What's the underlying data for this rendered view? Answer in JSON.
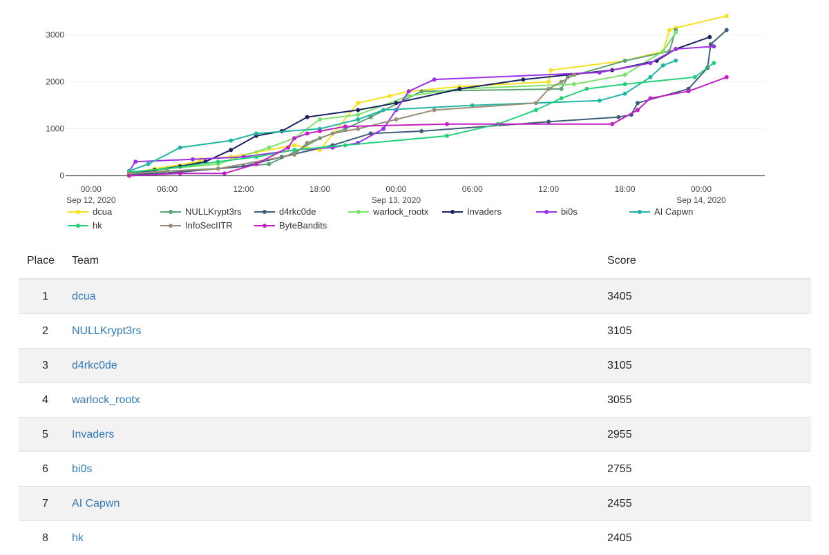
{
  "chart_data": {
    "type": "line",
    "x_axis": {
      "ticks": [
        {
          "x": "2020-09-12 00:00",
          "label": "00:00",
          "sub": "Sep 12, 2020"
        },
        {
          "x": "2020-09-12 06:00",
          "label": "06:00",
          "sub": ""
        },
        {
          "x": "2020-09-12 12:00",
          "label": "12:00",
          "sub": ""
        },
        {
          "x": "2020-09-12 18:00",
          "label": "18:00",
          "sub": ""
        },
        {
          "x": "2020-09-13 00:00",
          "label": "00:00",
          "sub": "Sep 13, 2020"
        },
        {
          "x": "2020-09-13 06:00",
          "label": "06:00",
          "sub": ""
        },
        {
          "x": "2020-09-13 12:00",
          "label": "12:00",
          "sub": ""
        },
        {
          "x": "2020-09-13 18:00",
          "label": "18:00",
          "sub": ""
        },
        {
          "x": "2020-09-14 00:00",
          "label": "00:00",
          "sub": "Sep 14, 2020"
        }
      ],
      "range": [
        "2020-09-11 22:00",
        "2020-09-14 05:00"
      ]
    },
    "y_axis": {
      "ticks": [
        0,
        1000,
        2000,
        3000
      ],
      "range": [
        -50,
        3450
      ]
    },
    "grid": true,
    "legend_position": "bottom",
    "series": [
      {
        "name": "dcua",
        "color": "#f5e11d",
        "points": [
          [
            "2020-09-12 03:00",
            50
          ],
          [
            "2020-09-12 05:00",
            150
          ],
          [
            "2020-09-12 08:30",
            300
          ],
          [
            "2020-09-12 08:40",
            350
          ],
          [
            "2020-09-12 11:00",
            400
          ],
          [
            "2020-09-12 13:00",
            500
          ],
          [
            "2020-09-12 16:00",
            650
          ],
          [
            "2020-09-12 18:00",
            550
          ],
          [
            "2020-09-12 21:00",
            1550
          ],
          [
            "2020-09-12 23:30",
            1700
          ],
          [
            "2020-09-13 01:00",
            1800
          ],
          [
            "2020-09-13 05:00",
            1900
          ],
          [
            "2020-09-13 12:00",
            2000
          ],
          [
            "2020-09-13 12:10",
            2250
          ],
          [
            "2020-09-13 18:00",
            2450
          ],
          [
            "2020-09-13 21:00",
            2650
          ],
          [
            "2020-09-13 21:30",
            3100
          ],
          [
            "2020-09-13 22:00",
            3150
          ],
          [
            "2020-09-14 02:00",
            3405
          ]
        ]
      },
      {
        "name": "NULLKrypt3rs",
        "color": "#5aa178",
        "points": [
          [
            "2020-09-12 03:00",
            50
          ],
          [
            "2020-09-12 06:00",
            100
          ],
          [
            "2020-09-12 10:00",
            150
          ],
          [
            "2020-09-12 14:00",
            250
          ],
          [
            "2020-09-12 16:00",
            500
          ],
          [
            "2020-09-12 18:00",
            800
          ],
          [
            "2020-09-12 20:00",
            1000
          ],
          [
            "2020-09-12 22:00",
            1250
          ],
          [
            "2020-09-13 02:00",
            1800
          ],
          [
            "2020-09-13 13:00",
            1850
          ],
          [
            "2020-09-13 13:30",
            2100
          ],
          [
            "2020-09-13 18:00",
            2450
          ],
          [
            "2020-09-13 21:30",
            2650
          ],
          [
            "2020-09-13 22:00",
            3105
          ]
        ]
      },
      {
        "name": "d4rkc0de",
        "color": "#3d5d7a",
        "points": [
          [
            "2020-09-12 03:00",
            20
          ],
          [
            "2020-09-12 07:00",
            80
          ],
          [
            "2020-09-12 12:00",
            200
          ],
          [
            "2020-09-12 15:00",
            400
          ],
          [
            "2020-09-12 19:00",
            650
          ],
          [
            "2020-09-12 22:00",
            900
          ],
          [
            "2020-09-13 02:00",
            950
          ],
          [
            "2020-09-13 12:00",
            1150
          ],
          [
            "2020-09-13 17:30",
            1250
          ],
          [
            "2020-09-13 18:30",
            1300
          ],
          [
            "2020-09-13 19:00",
            1550
          ],
          [
            "2020-09-13 23:00",
            1850
          ],
          [
            "2020-09-14 00:30",
            2300
          ],
          [
            "2020-09-14 00:45",
            2800
          ],
          [
            "2020-09-14 02:00",
            3105
          ]
        ]
      },
      {
        "name": "warlock_rootx",
        "color": "#7ce26b",
        "points": [
          [
            "2020-09-12 03:00",
            40
          ],
          [
            "2020-09-12 06:00",
            150
          ],
          [
            "2020-09-12 10:00",
            250
          ],
          [
            "2020-09-12 14:00",
            600
          ],
          [
            "2020-09-12 16:00",
            800
          ],
          [
            "2020-09-12 18:00",
            1200
          ],
          [
            "2020-09-12 21:00",
            1300
          ],
          [
            "2020-09-13 01:00",
            1700
          ],
          [
            "2020-09-13 05:00",
            1850
          ],
          [
            "2020-09-13 14:00",
            1950
          ],
          [
            "2020-09-13 18:00",
            2150
          ],
          [
            "2020-09-13 21:00",
            2650
          ],
          [
            "2020-09-13 22:00",
            3055
          ]
        ]
      },
      {
        "name": "Invaders",
        "color": "#1a2261",
        "points": [
          [
            "2020-09-12 03:00",
            50
          ],
          [
            "2020-09-12 05:00",
            120
          ],
          [
            "2020-09-12 07:00",
            200
          ],
          [
            "2020-09-12 09:00",
            300
          ],
          [
            "2020-09-12 11:00",
            550
          ],
          [
            "2020-09-12 13:00",
            850
          ],
          [
            "2020-09-12 15:00",
            950
          ],
          [
            "2020-09-12 17:00",
            1250
          ],
          [
            "2020-09-12 21:00",
            1400
          ],
          [
            "2020-09-13 00:00",
            1550
          ],
          [
            "2020-09-13 05:00",
            1850
          ],
          [
            "2020-09-13 10:00",
            2050
          ],
          [
            "2020-09-13 17:00",
            2250
          ],
          [
            "2020-09-13 20:30",
            2450
          ],
          [
            "2020-09-13 22:00",
            2700
          ],
          [
            "2020-09-14 00:40",
            2955
          ]
        ]
      },
      {
        "name": "bi0s",
        "color": "#9b30e8",
        "points": [
          [
            "2020-09-12 03:00",
            100
          ],
          [
            "2020-09-12 03:30",
            300
          ],
          [
            "2020-09-12 08:00",
            350
          ],
          [
            "2020-09-12 12:00",
            400
          ],
          [
            "2020-09-12 16:00",
            550
          ],
          [
            "2020-09-12 19:00",
            600
          ],
          [
            "2020-09-12 21:00",
            700
          ],
          [
            "2020-09-12 23:00",
            1000
          ],
          [
            "2020-09-13 00:00",
            1400
          ],
          [
            "2020-09-13 01:00",
            1800
          ],
          [
            "2020-09-13 03:00",
            2050
          ],
          [
            "2020-09-13 16:00",
            2200
          ],
          [
            "2020-09-13 20:00",
            2400
          ],
          [
            "2020-09-13 22:00",
            2700
          ],
          [
            "2020-09-14 01:00",
            2755
          ]
        ]
      },
      {
        "name": "AI Capwn",
        "color": "#1fb5a3",
        "points": [
          [
            "2020-09-12 03:00",
            100
          ],
          [
            "2020-09-12 04:30",
            250
          ],
          [
            "2020-09-12 07:00",
            600
          ],
          [
            "2020-09-12 11:00",
            750
          ],
          [
            "2020-09-12 13:00",
            900
          ],
          [
            "2020-09-12 18:00",
            1000
          ],
          [
            "2020-09-12 21:00",
            1200
          ],
          [
            "2020-09-12 23:00",
            1400
          ],
          [
            "2020-09-13 06:00",
            1500
          ],
          [
            "2020-09-13 16:00",
            1600
          ],
          [
            "2020-09-13 18:00",
            1750
          ],
          [
            "2020-09-13 20:00",
            2100
          ],
          [
            "2020-09-13 21:00",
            2350
          ],
          [
            "2020-09-13 22:00",
            2455
          ]
        ]
      },
      {
        "name": "hk",
        "color": "#23d37a",
        "points": [
          [
            "2020-09-12 03:00",
            80
          ],
          [
            "2020-09-12 06:00",
            150
          ],
          [
            "2020-09-12 10:00",
            300
          ],
          [
            "2020-09-12 13:00",
            400
          ],
          [
            "2020-09-12 16:00",
            550
          ],
          [
            "2020-09-12 20:00",
            650
          ],
          [
            "2020-09-13 04:00",
            850
          ],
          [
            "2020-09-13 08:00",
            1100
          ],
          [
            "2020-09-13 11:00",
            1400
          ],
          [
            "2020-09-13 13:00",
            1650
          ],
          [
            "2020-09-13 15:00",
            1850
          ],
          [
            "2020-09-13 18:00",
            1950
          ],
          [
            "2020-09-13 23:30",
            2100
          ],
          [
            "2020-09-14 01:00",
            2405
          ]
        ]
      },
      {
        "name": "InfoSecIITR",
        "color": "#9a8e78",
        "points": [
          [
            "2020-09-12 03:00",
            50
          ],
          [
            "2020-09-12 06:00",
            100
          ],
          [
            "2020-09-12 10:00",
            150
          ],
          [
            "2020-09-12 16:00",
            450
          ],
          [
            "2020-09-12 17:00",
            700
          ],
          [
            "2020-09-12 19:00",
            900
          ],
          [
            "2020-09-12 21:00",
            1000
          ],
          [
            "2020-09-13 00:00",
            1200
          ],
          [
            "2020-09-13 03:00",
            1400
          ],
          [
            "2020-09-13 11:00",
            1550
          ],
          [
            "2020-09-13 12:00",
            1850
          ],
          [
            "2020-09-13 13:00",
            2000
          ],
          [
            "2020-09-13 14:00",
            2150
          ]
        ]
      },
      {
        "name": "ByteBandits",
        "color": "#c41fc5",
        "points": [
          [
            "2020-09-12 03:00",
            0
          ],
          [
            "2020-09-12 07:00",
            50
          ],
          [
            "2020-09-12 10:30",
            50
          ],
          [
            "2020-09-12 13:00",
            250
          ],
          [
            "2020-09-12 15:30",
            600
          ],
          [
            "2020-09-12 16:00",
            800
          ],
          [
            "2020-09-12 17:00",
            900
          ],
          [
            "2020-09-12 18:00",
            950
          ],
          [
            "2020-09-12 20:00",
            1050
          ],
          [
            "2020-09-13 04:00",
            1100
          ],
          [
            "2020-09-13 17:00",
            1100
          ],
          [
            "2020-09-13 19:00",
            1400
          ],
          [
            "2020-09-13 20:00",
            1650
          ],
          [
            "2020-09-13 23:00",
            1800
          ],
          [
            "2020-09-14 02:00",
            2100
          ]
        ]
      }
    ]
  },
  "scoreboard": {
    "headers": {
      "place": "Place",
      "team": "Team",
      "score": "Score"
    },
    "rows": [
      {
        "place": "1",
        "team": "dcua",
        "score": "3405"
      },
      {
        "place": "2",
        "team": "NULLKrypt3rs",
        "score": "3105"
      },
      {
        "place": "3",
        "team": "d4rkc0de",
        "score": "3105"
      },
      {
        "place": "4",
        "team": "warlock_rootx",
        "score": "3055"
      },
      {
        "place": "5",
        "team": "Invaders",
        "score": "2955"
      },
      {
        "place": "6",
        "team": "bi0s",
        "score": "2755"
      },
      {
        "place": "7",
        "team": "AI Capwn",
        "score": "2455"
      },
      {
        "place": "8",
        "team": "hk",
        "score": "2405"
      }
    ]
  }
}
